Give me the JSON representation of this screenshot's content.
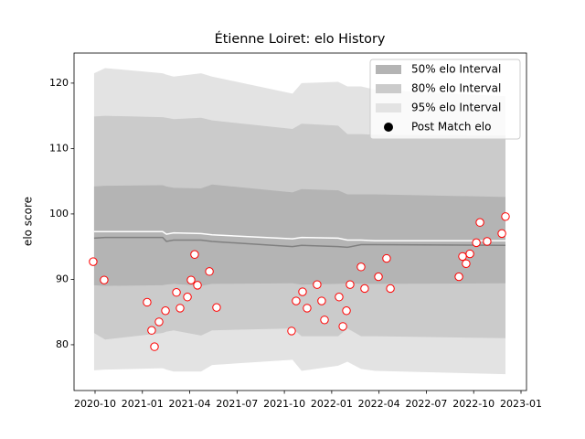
{
  "chart_data": {
    "type": "elo-history",
    "title": "Étienne Loiret: elo History",
    "ylabel": "elo score",
    "xlim": [
      2020.639,
      2023.029
    ],
    "ylim": [
      73.0,
      124.6
    ],
    "xticks": [
      {
        "value": 2020.75,
        "label": "2020-10"
      },
      {
        "value": 2021.0,
        "label": "2021-01"
      },
      {
        "value": 2021.25,
        "label": "2021-04"
      },
      {
        "value": 2021.5,
        "label": "2021-07"
      },
      {
        "value": 2021.75,
        "label": "2021-10"
      },
      {
        "value": 2022.0,
        "label": "2022-01"
      },
      {
        "value": 2022.25,
        "label": "2022-04"
      },
      {
        "value": 2022.5,
        "label": "2022-07"
      },
      {
        "value": 2022.75,
        "label": "2022-10"
      },
      {
        "value": 2023.0,
        "label": "2023-01"
      }
    ],
    "yticks": [
      80,
      90,
      100,
      110,
      120
    ],
    "legend": "upper right",
    "band_x": [
      2020.745,
      2020.803,
      2021.107,
      2021.127,
      2021.165,
      2021.31,
      2021.368,
      2021.793,
      2021.841,
      2022.034,
      2022.083,
      2022.155,
      2022.228,
      2022.918
    ],
    "bands": [
      {
        "name": "95% elo Interval",
        "color": "#e3e3e3",
        "upper": [
          121.5,
          122.3,
          121.5,
          121.3,
          121.0,
          121.5,
          121.0,
          118.4,
          120.0,
          120.2,
          119.5,
          119.5,
          119.0,
          118.0
        ],
        "lower": [
          76.1,
          76.2,
          76.4,
          76.2,
          75.9,
          75.9,
          76.9,
          77.7,
          76.0,
          76.8,
          77.4,
          76.3,
          76.0,
          75.5
        ]
      },
      {
        "name": "80% elo Interval",
        "color": "#cbcbcb",
        "upper": [
          114.9,
          115.0,
          114.8,
          114.7,
          114.5,
          114.7,
          114.3,
          113.0,
          113.8,
          113.5,
          112.2,
          112.2,
          112.1,
          112.0
        ],
        "lower": [
          81.8,
          80.8,
          81.8,
          82.0,
          82.2,
          81.4,
          82.2,
          82.5,
          81.3,
          81.3,
          82.5,
          81.3,
          81.3,
          81.0
        ]
      },
      {
        "name": "50% elo Interval",
        "color": "#b4b4b4",
        "upper": [
          104.2,
          104.3,
          104.4,
          104.2,
          104.0,
          103.9,
          104.5,
          103.3,
          103.8,
          103.6,
          103.0,
          103.0,
          103.0,
          102.6
        ],
        "lower": [
          89.1,
          89.0,
          89.1,
          89.2,
          89.3,
          89.0,
          89.3,
          89.4,
          89.2,
          89.3,
          89.4,
          89.3,
          89.3,
          89.4
        ]
      }
    ],
    "lines": [
      {
        "color": "#808080",
        "values": [
          96.3,
          96.4,
          96.4,
          95.8,
          96.0,
          96.0,
          95.8,
          95.0,
          95.2,
          95.0,
          94.9,
          95.3,
          95.3,
          95.2
        ]
      },
      {
        "color": "#ffffff",
        "values": [
          97.3,
          97.3,
          97.3,
          96.9,
          97.1,
          97.0,
          96.8,
          96.2,
          96.4,
          96.3,
          96.0,
          96.0,
          95.9,
          95.9
        ]
      }
    ],
    "points": {
      "name": "Post Match elo",
      "color": "#ff0000",
      "x": [
        2020.74,
        2020.798,
        2021.025,
        2021.049,
        2021.064,
        2021.088,
        2021.122,
        2021.18,
        2021.199,
        2021.238,
        2021.257,
        2021.276,
        2021.291,
        2021.354,
        2021.392,
        2021.788,
        2021.812,
        2021.846,
        2021.87,
        2021.923,
        2021.947,
        2021.962,
        2022.039,
        2022.059,
        2022.078,
        2022.097,
        2022.155,
        2022.174,
        2022.247,
        2022.29,
        2022.31,
        2022.672,
        2022.691,
        2022.71,
        2022.73,
        2022.764,
        2022.783,
        2022.821,
        2022.899,
        2022.918
      ],
      "values": [
        92.7,
        89.9,
        86.5,
        82.2,
        79.7,
        83.5,
        85.2,
        88.0,
        85.6,
        87.3,
        89.9,
        93.8,
        89.1,
        91.2,
        85.7,
        82.1,
        86.7,
        88.1,
        85.6,
        89.2,
        86.7,
        83.8,
        87.3,
        82.8,
        85.2,
        89.2,
        91.9,
        88.6,
        90.4,
        93.2,
        88.6,
        90.4,
        93.5,
        92.4,
        93.9,
        95.6,
        98.7,
        95.8,
        97.0,
        99.6
      ]
    }
  }
}
